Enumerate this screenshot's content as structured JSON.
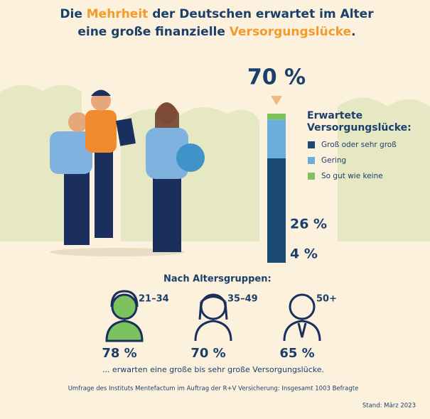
{
  "chart_data": {
    "type": "stacked-column",
    "title_parts": [
      {
        "text": "Die ",
        "highlight": false
      },
      {
        "text": "Mehrheit",
        "highlight": true
      },
      {
        "text": " der Deutschen erwartet im Alter",
        "highlight": false
      },
      {
        "text": "eine große finanzielle ",
        "highlight": false,
        "newline": true
      },
      {
        "text": "Versorgungslücke",
        "highlight": true
      },
      {
        "text": ".",
        "highlight": false
      }
    ],
    "title_color": "#1b3f6b",
    "highlight_color": "#f39a2b",
    "legend_title": "Erwartete Versorgungslücke:",
    "series": [
      {
        "name": "Groß oder sehr groß",
        "color": "#1b4a73",
        "values": [
          70
        ],
        "value_labels": [
          "70 %"
        ]
      },
      {
        "name": "Gering",
        "color": "#6aaedb",
        "values": [
          26
        ],
        "value_labels": [
          "26 %"
        ]
      },
      {
        "name": "So gut wie keine",
        "color": "#7cc35f",
        "values": [
          4
        ],
        "value_labels": [
          "4 %"
        ]
      }
    ],
    "age_title": "Nach Altersgruppen:",
    "age_groups": {
      "categories": [
        "21–34",
        "35–49",
        "50+"
      ],
      "values": [
        78,
        70,
        65
      ],
      "value_labels": [
        "78 %",
        "70 %",
        "65 %"
      ]
    },
    "age_caption": "... erwarten eine große bis sehr große Versorgungslücke.",
    "source": "Umfrage des Instituts Mentefactum im Auftrag der R+V Versicherung: Insgesamt 1003 Befragte",
    "date": "Stand: März 2023"
  }
}
